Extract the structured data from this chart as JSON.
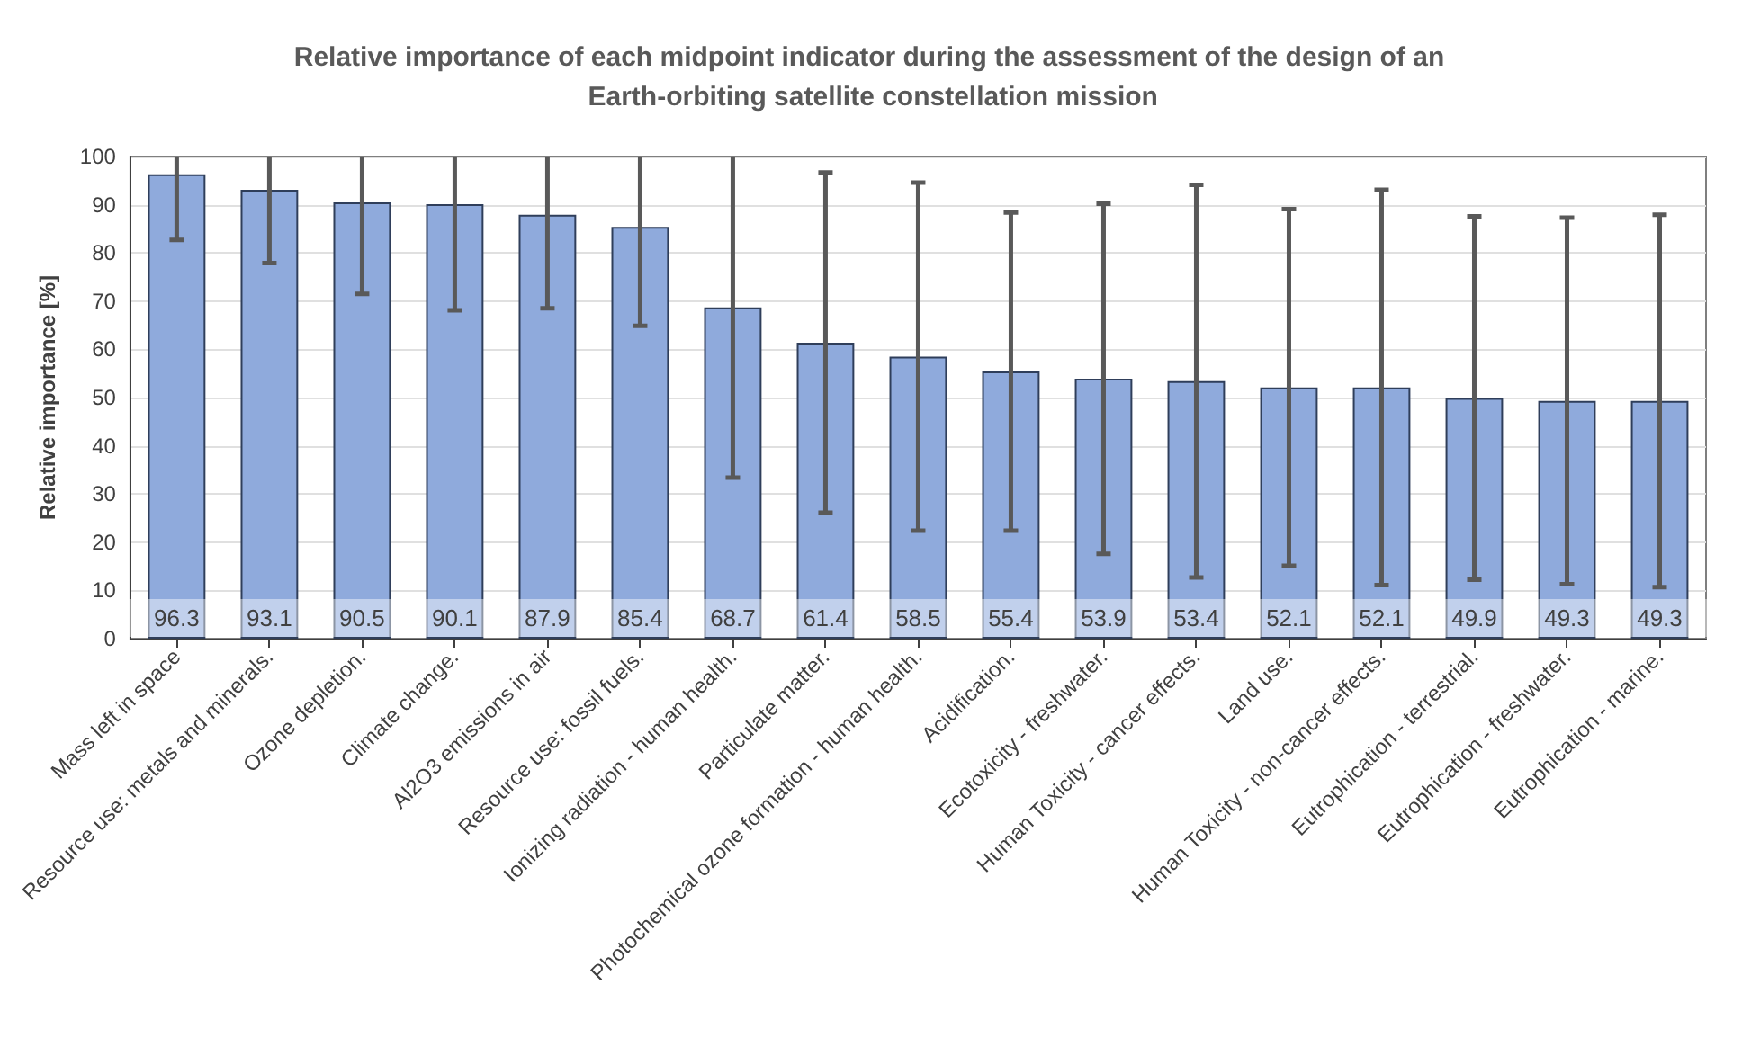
{
  "chart_data": {
    "type": "bar",
    "title": "Relative importance of each midpoint indicator during the assessment of the design of an Earth-orbiting satellite constellation mission",
    "ylabel": "Relative importance [%]",
    "categories": [
      "Mass left in space",
      "Resource use: metals and minerals.",
      "Ozone depletion.",
      "Climate change.",
      "Al2O3 emissions in air",
      "Resource use: fossil fuels.",
      "Ionizing radiation - human health.",
      "Particulate matter.",
      "Photochemical ozone formation - human health.",
      "Acidification.",
      "Ecotoxicity - freshwater.",
      "Human Toxicity - cancer effects.",
      "Land use.",
      "Human Toxicity - non-cancer effects.",
      "Eutrophication - terrestrial.",
      "Eutrophication - freshwater.",
      "Eutrophication - marine."
    ],
    "values": [
      96.3,
      93.1,
      90.5,
      90.1,
      87.9,
      85.4,
      68.7,
      61.4,
      58.5,
      55.4,
      53.9,
      53.4,
      52.1,
      52.1,
      49.9,
      49.3,
      49.3
    ],
    "errors": [
      [
        82.7,
        100
      ],
      [
        77.9,
        100
      ],
      [
        71.5,
        100
      ],
      [
        68.1,
        100
      ],
      [
        68.5,
        100
      ],
      [
        64.9,
        100
      ],
      [
        33.4,
        100
      ],
      35.3,
      36.1,
      33,
      36.3,
      40.7,
      37,
      41,
      37.7,
      38,
      38.6
    ],
    "color": "#8faadc",
    "data_labels": true,
    "ylim": [
      0,
      100
    ],
    "yticks": [
      0,
      10,
      20,
      30,
      40,
      50,
      60,
      70,
      80,
      90,
      100
    ],
    "grid": "y"
  }
}
